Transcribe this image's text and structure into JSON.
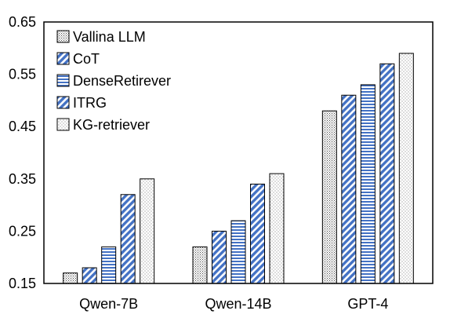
{
  "chart_data": {
    "type": "bar",
    "title": "",
    "xlabel": "",
    "ylabel": "",
    "categories": [
      "Qwen-7B",
      "Qwen-14B",
      "GPT-4"
    ],
    "series": [
      {
        "name": "Vallina LLM",
        "values": [
          0.17,
          0.22,
          0.48
        ],
        "pattern": "dots-dense"
      },
      {
        "name": "CoT",
        "values": [
          0.18,
          0.25,
          0.51
        ],
        "pattern": "diag-blue"
      },
      {
        "name": "DenseRetirever",
        "values": [
          0.22,
          0.27,
          0.53
        ],
        "pattern": "hlines-blue"
      },
      {
        "name": "ITRG",
        "values": [
          0.32,
          0.34,
          0.57
        ],
        "pattern": "diag-blue"
      },
      {
        "name": "KG-retriever",
        "values": [
          0.35,
          0.36,
          0.59
        ],
        "pattern": "dots-sparse"
      }
    ],
    "ylim": [
      0.15,
      0.65
    ],
    "yticks": [
      "0.15",
      "0.25",
      "0.35",
      "0.45",
      "0.55",
      "0.65"
    ],
    "grid": false,
    "legend_position": "top-left",
    "colors": {
      "accent": "#4472C4",
      "outline": "#000000",
      "background": "#ffffff"
    }
  }
}
